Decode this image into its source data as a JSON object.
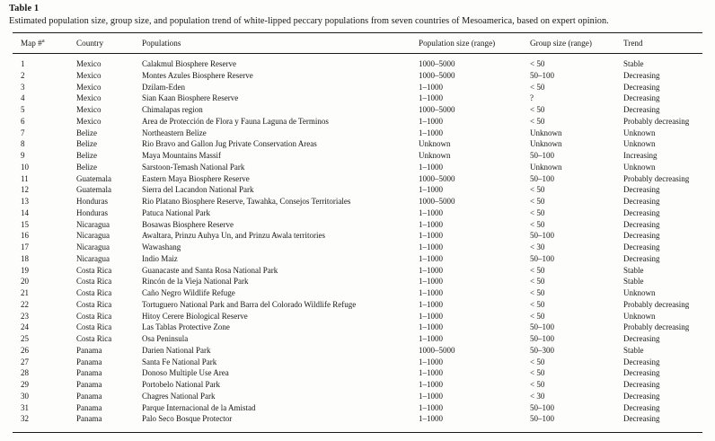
{
  "page": {
    "background": "#fdfdfc",
    "text_color": "#161616",
    "rule_color": "#1a1a1a"
  },
  "table": {
    "label": "Table 1",
    "caption": "Estimated population size, group size, and population trend of white-lipped peccary populations from seven countries of Mesoamerica, based on expert opinion.",
    "footnote_marker": "a",
    "columns": [
      "Map #",
      "Country",
      "Populations",
      "Population size (range)",
      "Group size (range)",
      "Trend"
    ],
    "rows": [
      [
        "1",
        "Mexico",
        "Calakmul Biosphere Reserve",
        "1000–5000",
        "< 50",
        "Stable"
      ],
      [
        "2",
        "Mexico",
        "Montes Azules Biosphere Reserve",
        "1000–5000",
        "50–100",
        "Decreasing"
      ],
      [
        "3",
        "Mexico",
        "Dzilam-Eden",
        "1–1000",
        "< 50",
        "Decreasing"
      ],
      [
        "4",
        "Mexico",
        "Sian Kaan Biosphere Reserve",
        "1–1000",
        "?",
        "Decreasing"
      ],
      [
        "5",
        "Mexico",
        "Chimalapas region",
        "1000–5000",
        "< 50",
        "Decreasing"
      ],
      [
        "6",
        "Mexico",
        "Area de Protección de Flora y Fauna Laguna de Terminos",
        "1–1000",
        "< 50",
        "Probably decreasing"
      ],
      [
        "7",
        "Belize",
        "Northeastern Belize",
        "1–1000",
        "Unknown",
        "Unknown"
      ],
      [
        "8",
        "Belize",
        "Rio Bravo and Gallon Jug Private Conservation Areas",
        "Unknown",
        "Unknown",
        "Unknown"
      ],
      [
        "9",
        "Belize",
        "Maya Mountains Massif",
        "Unknown",
        "50–100",
        "Increasing"
      ],
      [
        "10",
        "Belize",
        "Sarstoon-Temash National Park",
        "1–1000",
        "Unknown",
        "Unknown"
      ],
      [
        "11",
        "Guatemala",
        "Eastern Maya Biosphere Reserve",
        "1000–5000",
        "50–100",
        "Probably decreasing"
      ],
      [
        "12",
        "Guatemala",
        "Sierra del Lacandon National Park",
        "1–1000",
        "< 50",
        "Decreasing"
      ],
      [
        "13",
        "Honduras",
        "Rio Platano Biosphere Reserve, Tawahka, Consejos Territoriales",
        "1000–5000",
        "< 50",
        "Decreasing"
      ],
      [
        "14",
        "Honduras",
        "Patuca National Park",
        "1–1000",
        "< 50",
        "Decreasing"
      ],
      [
        "15",
        "Nicaragua",
        "Bosawas Biosphere Reserve",
        "1–1000",
        "< 50",
        "Decreasing"
      ],
      [
        "16",
        "Nicaragua",
        "Awaltara, Prinzu Auhya Un, and Prinzu Awala territories",
        "1–1000",
        "50–100",
        "Decreasing"
      ],
      [
        "17",
        "Nicaragua",
        "Wawashang",
        "1–1000",
        "< 30",
        "Decreasing"
      ],
      [
        "18",
        "Nicaragua",
        "Indio Maiz",
        "1–1000",
        "50–100",
        "Decreasing"
      ],
      [
        "19",
        "Costa Rica",
        "Guanacaste and Santa Rosa National Park",
        "1–1000",
        "< 50",
        "Stable"
      ],
      [
        "20",
        "Costa Rica",
        "Rincón de la Vieja National Park",
        "1–1000",
        "< 50",
        "Stable"
      ],
      [
        "21",
        "Costa Rica",
        "Caño Negro Wildlife Refuge",
        "1–1000",
        "< 50",
        "Unknown"
      ],
      [
        "22",
        "Costa Rica",
        "Tortuguero National Park and Barra del Colorado Wildlife Refuge",
        "1–1000",
        "< 50",
        "Probably decreasing"
      ],
      [
        "23",
        "Costa Rica",
        "Hitoy Cerere Biological Reserve",
        "1–1000",
        "< 50",
        "Unknown"
      ],
      [
        "24",
        "Costa Rica",
        "Las Tablas Protective Zone",
        "1–1000",
        "50–100",
        "Probably decreasing"
      ],
      [
        "25",
        "Costa Rica",
        "Osa Peninsula",
        "1–1000",
        "50–100",
        "Decreasing"
      ],
      [
        "26",
        "Panama",
        "Darien National Park",
        "1000–5000",
        "50–300",
        "Stable"
      ],
      [
        "27",
        "Panama",
        "Santa Fe National Park",
        "1–1000",
        "< 50",
        "Decreasing"
      ],
      [
        "28",
        "Panama",
        "Donoso Multiple Use Area",
        "1–1000",
        "< 50",
        "Decreasing"
      ],
      [
        "29",
        "Panama",
        "Portobelo National Park",
        "1–1000",
        "< 50",
        "Decreasing"
      ],
      [
        "30",
        "Panama",
        "Chagres National Park",
        "1–1000",
        "< 30",
        "Decreasing"
      ],
      [
        "31",
        "Panama",
        "Parque Internacional de la Amistad",
        "1–1000",
        "50–100",
        "Decreasing"
      ],
      [
        "32",
        "Panama",
        "Palo Seco Bosque Protector",
        "1–1000",
        "50–100",
        "Decreasing"
      ]
    ]
  }
}
